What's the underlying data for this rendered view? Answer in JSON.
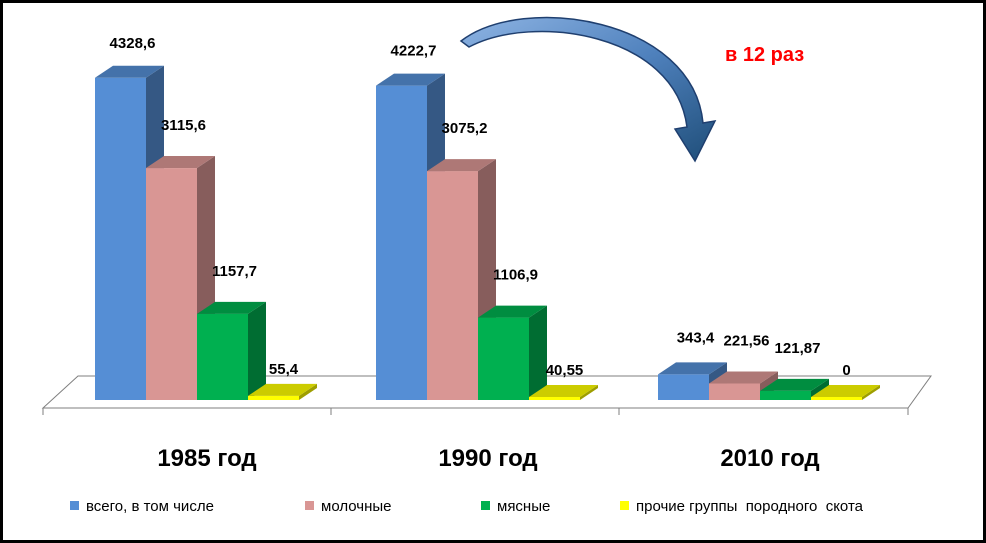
{
  "chart_data": {
    "type": "bar",
    "categories": [
      "1985 год",
      "1990 год",
      "2010 год"
    ],
    "series": [
      {
        "name": "всего, в том числе",
        "values": [
          4328.6,
          4222.7,
          343.4
        ],
        "labels": [
          "4328,6",
          "4222,7",
          "343,4"
        ],
        "color": "#558ed5",
        "label_color": "#000000"
      },
      {
        "name": "молочные",
        "values": [
          3115.6,
          3075.2,
          221.56
        ],
        "labels": [
          "3115,6",
          "3075,2",
          "221,56"
        ],
        "color": "#d99694",
        "label_color": "#000000"
      },
      {
        "name": "мясные",
        "values": [
          1157.7,
          1106.9,
          121.87
        ],
        "labels": [
          "1157,7",
          "1106,9",
          "121,87"
        ],
        "color": "#00b050",
        "label_color": "#000000"
      },
      {
        "name": "прочие группы  породного  скота",
        "values": [
          55.4,
          40.55,
          0
        ],
        "labels": [
          "55,4",
          "40,55",
          "0"
        ],
        "color": "#ffff00",
        "label_color": "#000000",
        "zero_label_color": "#ff0000"
      }
    ],
    "ylim": [
      0,
      4500
    ],
    "grid": false,
    "legend": "bottom",
    "annotation": {
      "text": "в 12 раз",
      "color": "#ff0000"
    }
  }
}
